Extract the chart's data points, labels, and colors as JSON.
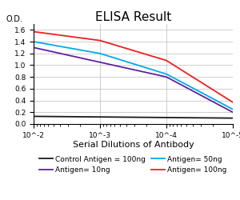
{
  "title": "ELISA Result",
  "ylabel": "O.D.",
  "xlabel": "Serial Dilutions of Antibody",
  "x_values": [
    0.01,
    0.001,
    0.0001,
    1e-05
  ],
  "lines": {
    "control": {
      "label": "Control Antigen = 100ng",
      "color": "#1a1a1a",
      "y_values": [
        0.13,
        0.12,
        0.11,
        0.1
      ]
    },
    "antigen10": {
      "label": "Antigen= 10ng",
      "color": "#6020A0",
      "y_values": [
        1.3,
        1.05,
        0.8,
        0.2
      ]
    },
    "antigen50": {
      "label": "Antigen= 50ng",
      "color": "#00AAEE",
      "y_values": [
        1.4,
        1.2,
        0.85,
        0.25
      ]
    },
    "antigen100": {
      "label": "Antigen= 100ng",
      "color": "#EE2020",
      "y_values": [
        1.57,
        1.42,
        1.08,
        0.37
      ]
    }
  },
  "ylim": [
    0,
    1.7
  ],
  "yticks": [
    0,
    0.2,
    0.4,
    0.6,
    0.8,
    1.0,
    1.2,
    1.4,
    1.6
  ],
  "background_color": "#ffffff",
  "title_fontsize": 11,
  "ylabel_fontsize": 7,
  "xlabel_fontsize": 8,
  "legend_fontsize": 6.5,
  "tick_fontsize": 6.5,
  "linewidth": 1.3
}
